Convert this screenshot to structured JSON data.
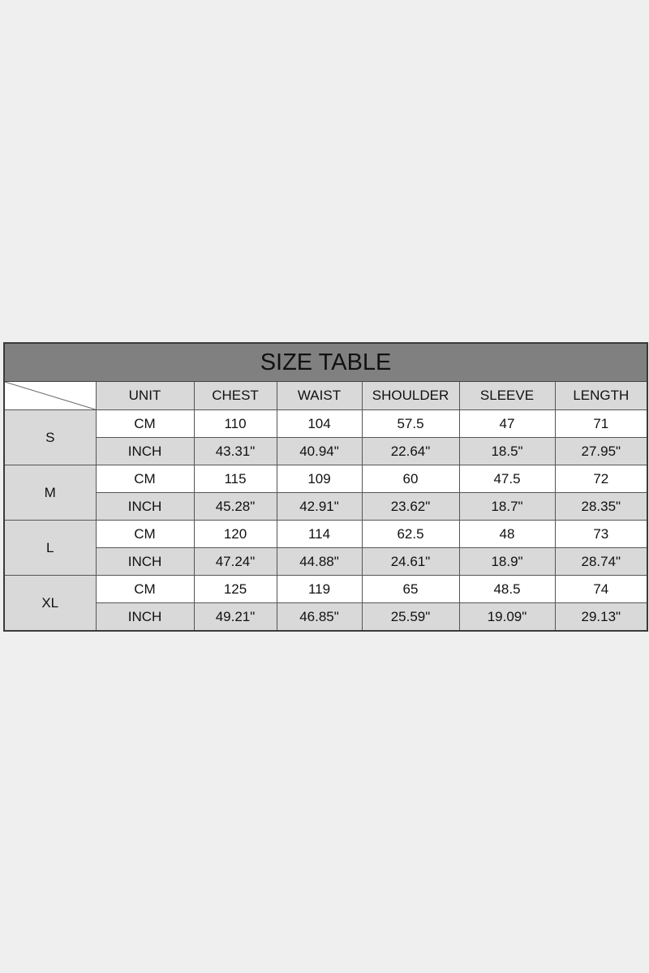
{
  "title": "SIZE TABLE",
  "headers": [
    "UNIT",
    "CHEST",
    "WAIST",
    "SHOULDER",
    "SLEEVE",
    "LENGTH"
  ],
  "rows": [
    {
      "size": "S",
      "cm": {
        "unit": "CM",
        "values": [
          "110",
          "104",
          "57.5",
          "47",
          "71"
        ]
      },
      "inch": {
        "unit": "INCH",
        "values": [
          "43.31\"",
          "40.94\"",
          "22.64\"",
          "18.5\"",
          "27.95\""
        ]
      }
    },
    {
      "size": "M",
      "cm": {
        "unit": "CM",
        "values": [
          "115",
          "109",
          "60",
          "47.5",
          "72"
        ]
      },
      "inch": {
        "unit": "INCH",
        "values": [
          "45.28\"",
          "42.91\"",
          "23.62\"",
          "18.7\"",
          "28.35\""
        ]
      }
    },
    {
      "size": "L",
      "cm": {
        "unit": "CM",
        "values": [
          "120",
          "114",
          "62.5",
          "48",
          "73"
        ]
      },
      "inch": {
        "unit": "INCH",
        "values": [
          "47.24\"",
          "44.88\"",
          "24.61\"",
          "18.9\"",
          "28.74\""
        ]
      }
    },
    {
      "size": "XL",
      "cm": {
        "unit": "CM",
        "values": [
          "125",
          "119",
          "65",
          "48.5",
          "74"
        ]
      },
      "inch": {
        "unit": "INCH",
        "values": [
          "49.21\"",
          "46.85\"",
          "25.59\"",
          "19.09\"",
          "29.13\""
        ]
      }
    }
  ],
  "colors": {
    "background": "#efefef",
    "title_bar": "#808080",
    "header": "#d9d9d9",
    "white_row": "#ffffff"
  }
}
